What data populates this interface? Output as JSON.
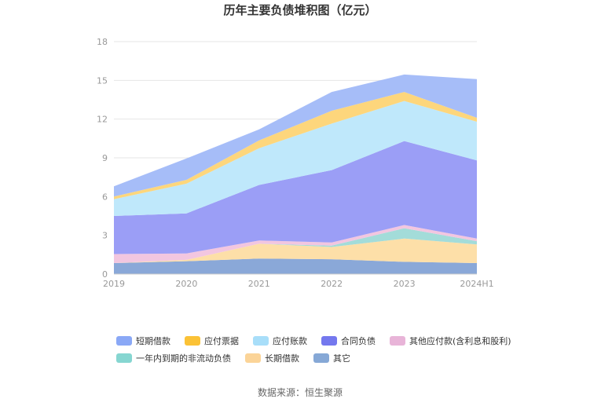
{
  "chart_data": {
    "type": "area",
    "stacked": true,
    "title": "历年主要负债堆积图（亿元）",
    "categories": [
      "2019",
      "2020",
      "2021",
      "2022",
      "2023",
      "2024H1"
    ],
    "ylim": [
      0,
      18
    ],
    "yticks": [
      0,
      3,
      6,
      9,
      12,
      15,
      18
    ],
    "grid": true,
    "legend_position": "bottom",
    "series": [
      {
        "name": "其它",
        "color": "#8aa8d8",
        "values": [
          0.85,
          1.0,
          1.2,
          1.15,
          0.95,
          0.85
        ]
      },
      {
        "name": "长期借款",
        "color": "#fddfa8",
        "values": [
          0.0,
          0.1,
          1.15,
          0.95,
          1.8,
          1.45
        ]
      },
      {
        "name": "一年内到期的非流动负债",
        "color": "#a3dcd9",
        "values": [
          0.0,
          0.0,
          0.0,
          0.1,
          0.8,
          0.25
        ]
      },
      {
        "name": "其他应付款(含利息和股利)",
        "color": "#f2c6e0",
        "values": [
          0.7,
          0.5,
          0.25,
          0.25,
          0.25,
          0.2
        ]
      },
      {
        "name": "合同负债",
        "color": "#9b9ef6",
        "values": [
          2.95,
          3.1,
          4.3,
          5.6,
          6.5,
          6.05
        ]
      },
      {
        "name": "应付账款",
        "color": "#bfe8fb",
        "values": [
          1.3,
          2.3,
          2.85,
          3.6,
          3.1,
          3.0
        ]
      },
      {
        "name": "应付票据",
        "color": "#fdd67c",
        "values": [
          0.2,
          0.3,
          0.6,
          1.0,
          0.7,
          0.3
        ]
      },
      {
        "name": "短期借款",
        "color": "#a6bdf8",
        "values": [
          0.8,
          1.65,
          0.85,
          1.45,
          1.35,
          3.0
        ]
      }
    ],
    "legend": [
      {
        "name": "短期借款",
        "color": "#8aa8f6"
      },
      {
        "name": "应付票据",
        "color": "#fbc236"
      },
      {
        "name": "应付账款",
        "color": "#a8def9"
      },
      {
        "name": "合同负债",
        "color": "#7478ee"
      },
      {
        "name": "其他应付款(含利息和股利)",
        "color": "#e8b4d8"
      },
      {
        "name": "一年内到期的非流动负债",
        "color": "#86d6d1"
      },
      {
        "name": "长期借款",
        "color": "#fbd498"
      },
      {
        "name": "其它",
        "color": "#86a8d6"
      }
    ]
  },
  "source_text": "数据来源：恒生聚源"
}
